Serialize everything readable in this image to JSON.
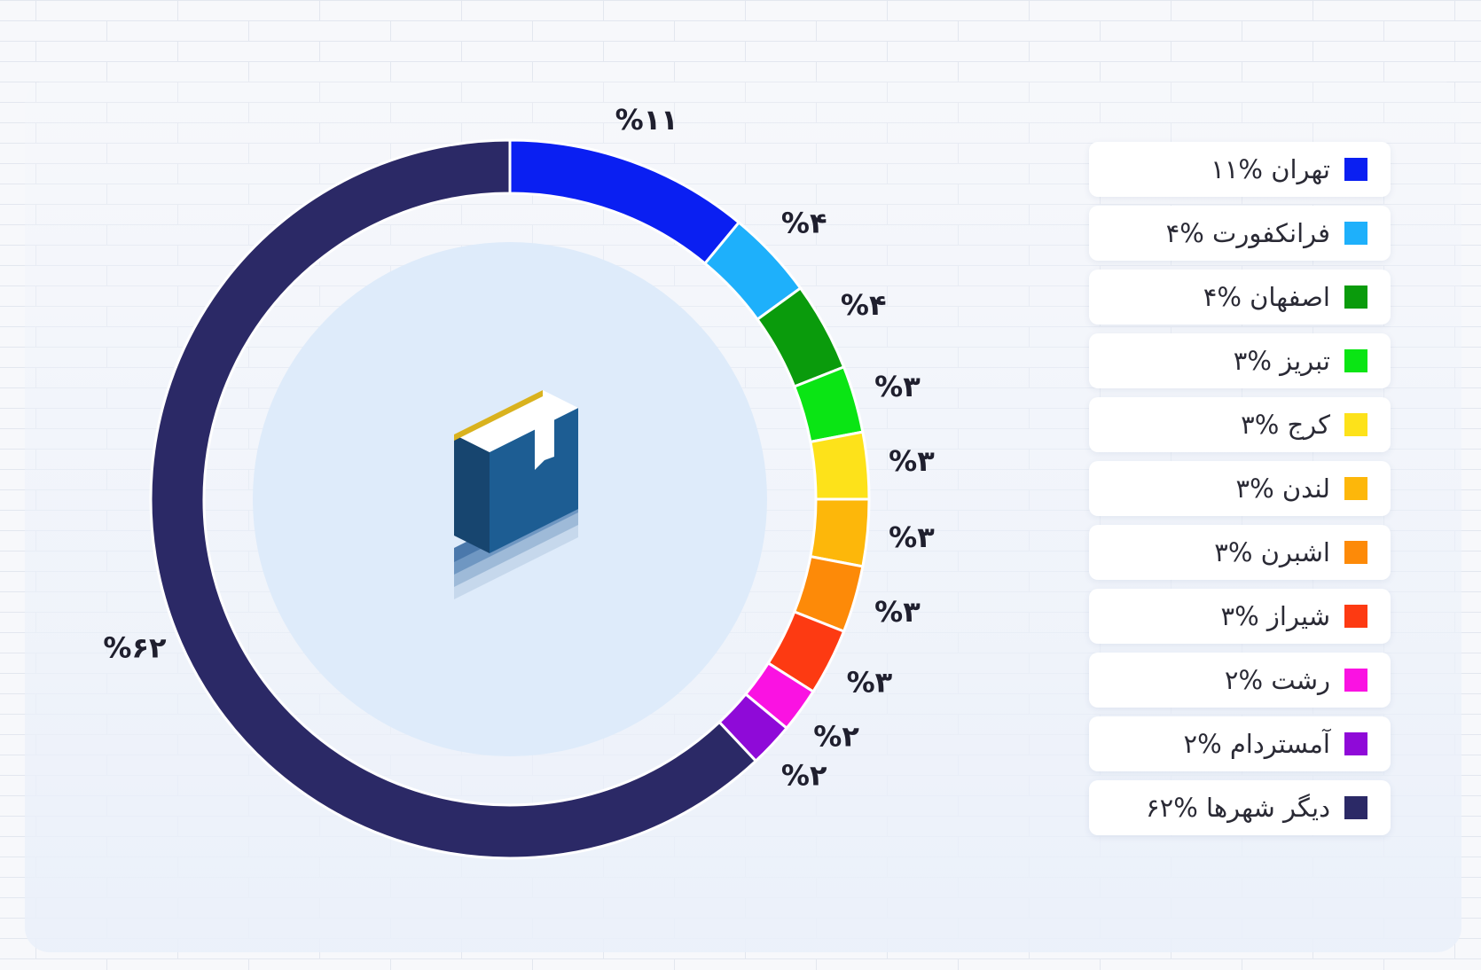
{
  "chart_data": {
    "type": "pie",
    "variant": "donut",
    "title": "",
    "categories": [
      "تهران",
      "فرانکفورت",
      "اصفهان",
      "تبریز",
      "کرج",
      "لندن",
      "اشبرن",
      "شیراز",
      "رشت",
      "آمستردام",
      "دیگر شهرها"
    ],
    "values": [
      11,
      4,
      4,
      3,
      3,
      3,
      3,
      3,
      2,
      2,
      62
    ],
    "value_labels": [
      "%۱۱",
      "%۴",
      "%۴",
      "%۳",
      "%۳",
      "%۳",
      "%۳",
      "%۳",
      "%۲",
      "%۲",
      "%۶۲"
    ],
    "colors": [
      "#0a1ff2",
      "#1eb0fb",
      "#0a9b0c",
      "#0ae514",
      "#fde21a",
      "#fdb70a",
      "#fd8a08",
      "#fd3a12",
      "#fa12e2",
      "#8f0ad8",
      "#2b2966"
    ],
    "legend": {
      "position": "right",
      "items": [
        "تهران %۱۱",
        "فرانکفورت %۴",
        "اصفهان %۴",
        "تبریز %۳",
        "کرج %۳",
        "لندن %۳",
        "اشبرن %۳",
        "شیراز %۳",
        "رشت %۲",
        "آمستردام %۲",
        "دیگر شهرها %۶۲"
      ]
    },
    "center_icon": "book-icon"
  }
}
